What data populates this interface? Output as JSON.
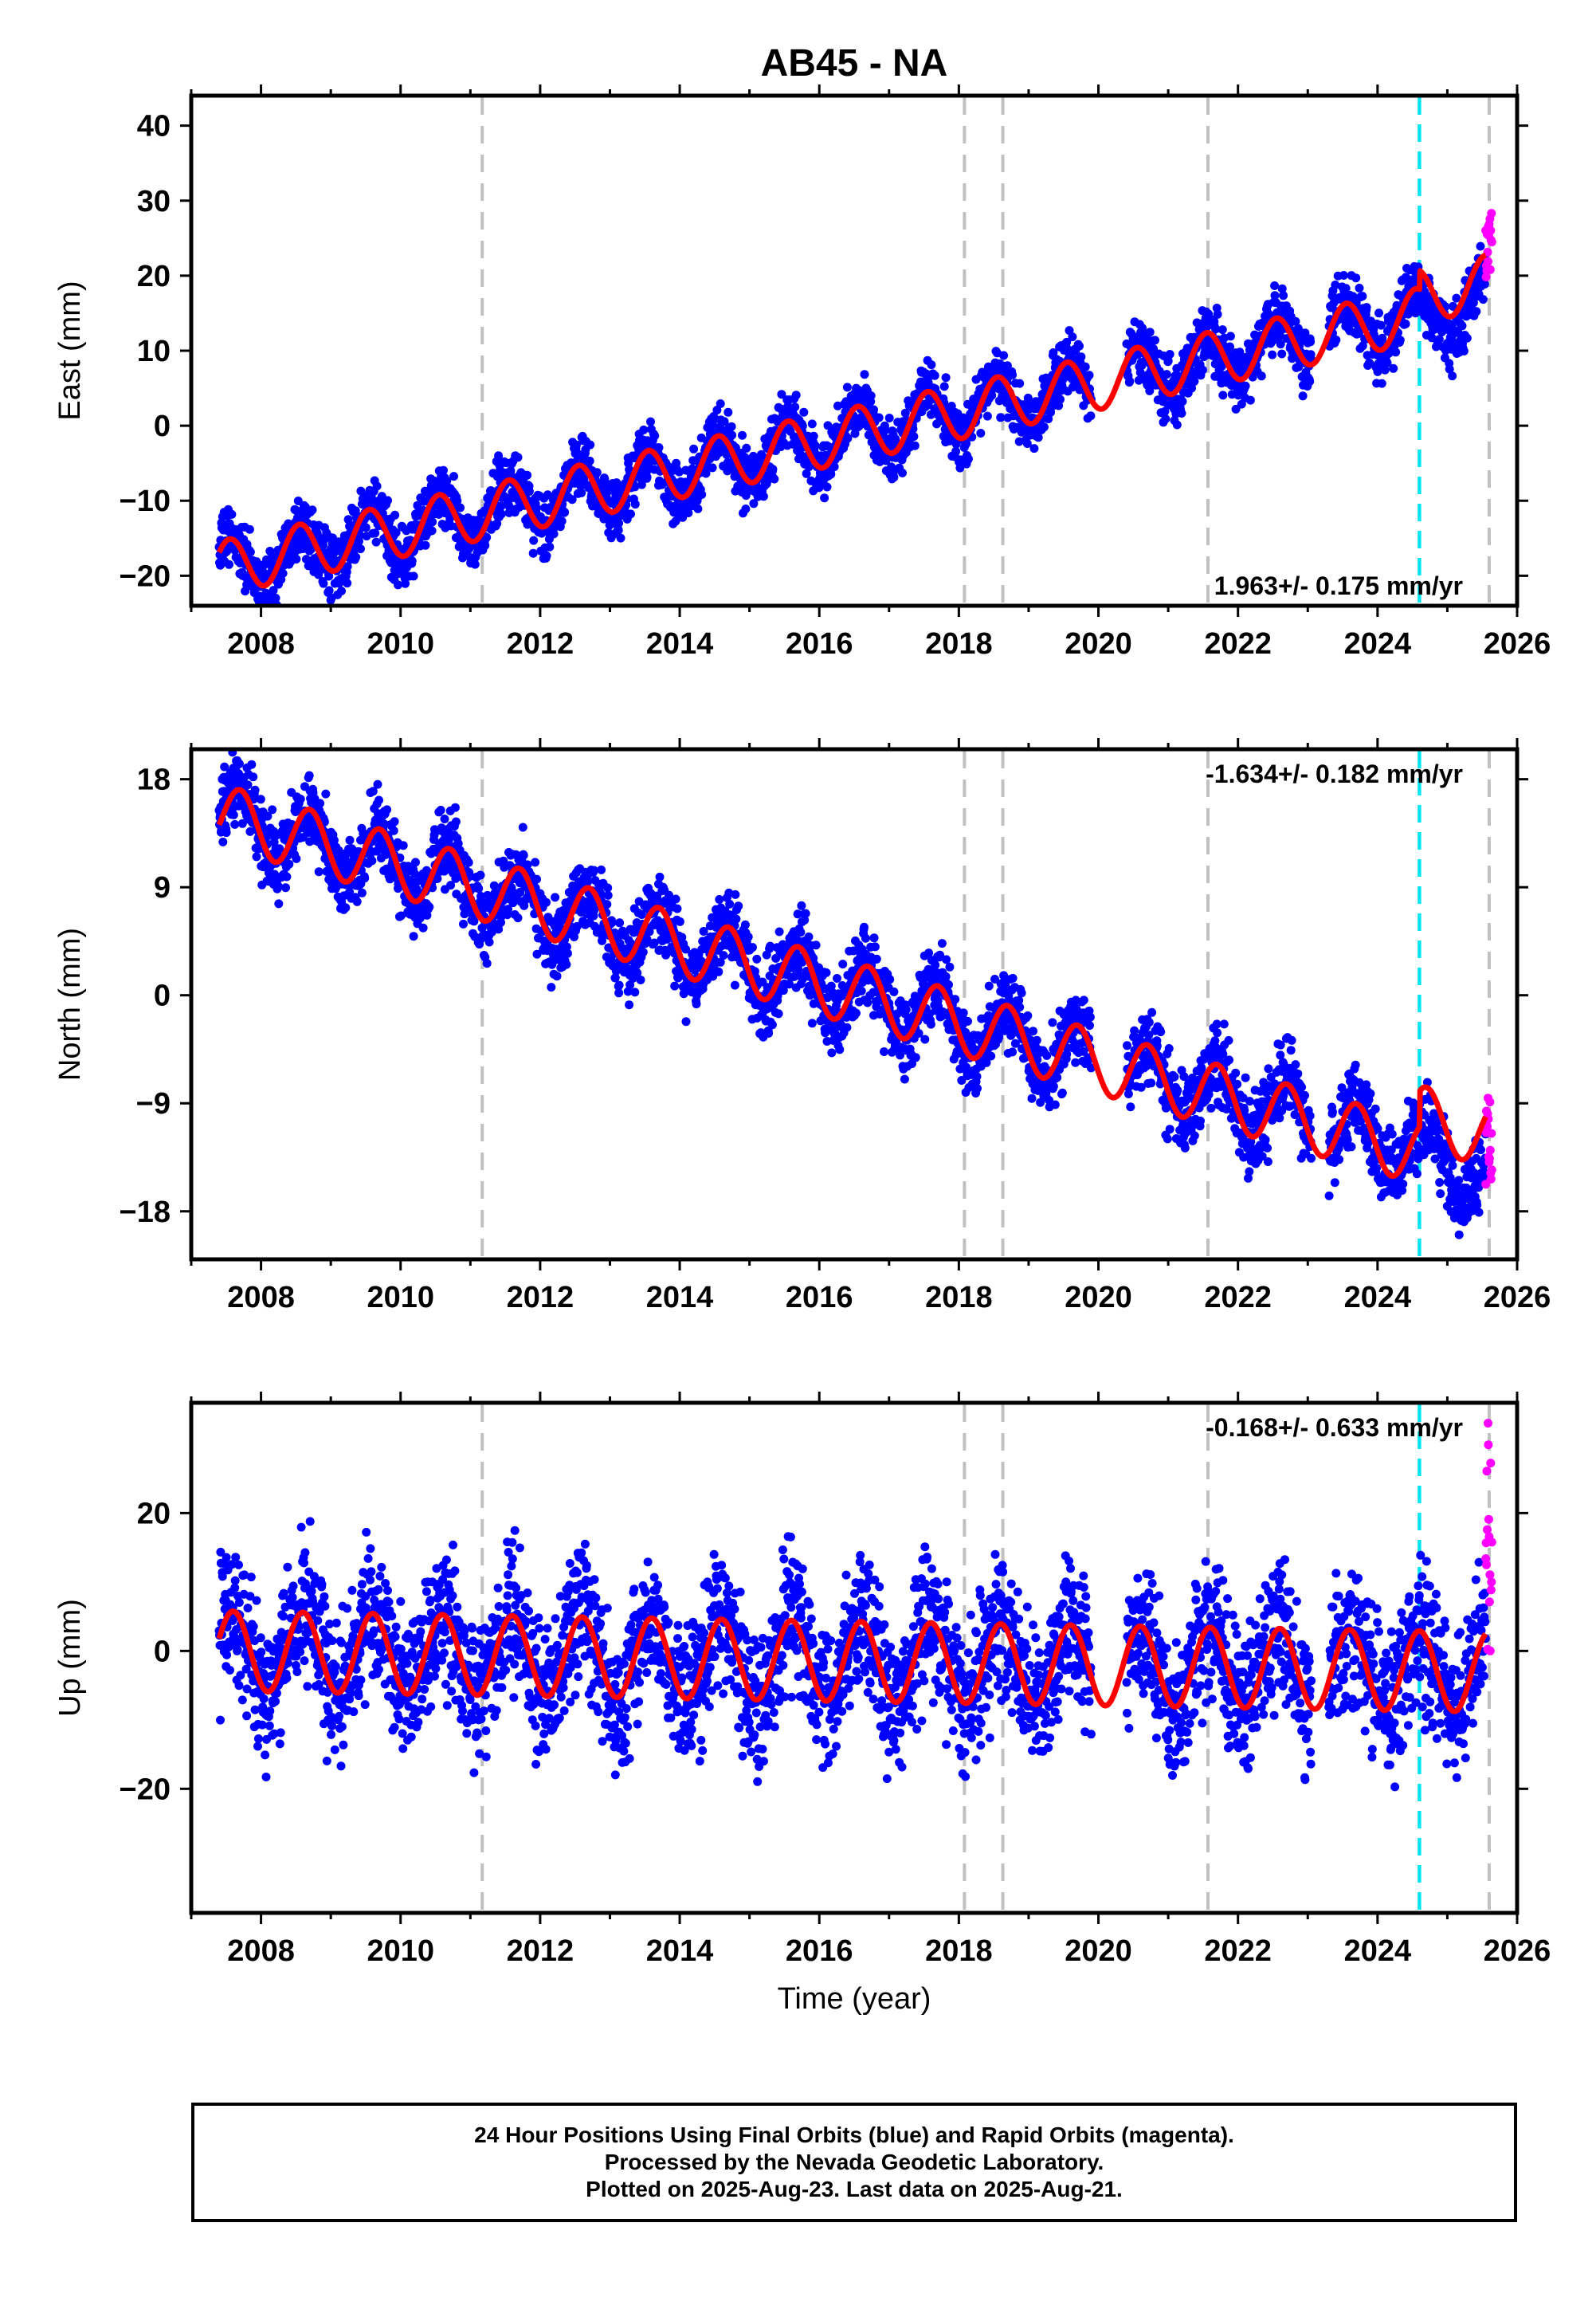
{
  "title": "AB45 - NA",
  "x_axis_label": "Time (year)",
  "x_ticks": [
    2008,
    2010,
    2012,
    2014,
    2016,
    2018,
    2020,
    2022,
    2024,
    2026
  ],
  "event_lines": {
    "gray": [
      2011.17,
      2018.08,
      2018.63,
      2021.57,
      2025.6
    ],
    "cyan": [
      2024.6
    ],
    "gray_color": "#c0c0c0",
    "cyan_color": "#00e5ee"
  },
  "colors": {
    "final_orbits": "#0000ff",
    "rapid_orbits": "#ff00ff",
    "model": "#ff0000"
  },
  "chart_data": [
    {
      "type": "scatter",
      "component": "east",
      "ylabel": "East (mm)",
      "xlim": [
        2007.0,
        2026.0
      ],
      "ylim": [
        -24,
        44
      ],
      "y_ticks": [
        -20,
        -10,
        0,
        10,
        20,
        30,
        40
      ],
      "rate_label": "1.963+/- 0.175 mm/yr",
      "rate_position": "bottom-right",
      "series": [
        {
          "name": "Final Orbits (blue)",
          "color": "#0000ff",
          "x_range": [
            2007.4,
            2025.55
          ],
          "trend": {
            "t0": 2007.4,
            "y0": -19.0,
            "slope": 1.963
          },
          "seasonal": {
            "amplitude": 3.6,
            "phase": 0.3
          },
          "scatter_sd": 2.0
        },
        {
          "name": "Rapid Orbits (magenta)",
          "color": "#ff00ff",
          "x_range": [
            2025.55,
            2025.64
          ],
          "y_range": [
            19.5,
            29
          ]
        }
      ],
      "model": {
        "color": "#ff0000",
        "trend": {
          "t0": 2007.4,
          "y0": -19.0,
          "slope": 1.963
        },
        "seasonal": {
          "amplitude": 3.6,
          "phase": 0.3
        },
        "offsets": [
          {
            "x": 2024.6,
            "dy": 2.5
          }
        ]
      }
    },
    {
      "type": "scatter",
      "component": "north",
      "ylabel": "North (mm)",
      "xlim": [
        2007.0,
        2026.0
      ],
      "ylim": [
        -22,
        20.5
      ],
      "y_ticks": [
        -18,
        -9,
        0,
        9,
        18
      ],
      "rate_label": "-1.634+/- 0.182 mm/yr",
      "rate_position": "top-right",
      "series": [
        {
          "name": "Final Orbits (blue)",
          "color": "#0000ff",
          "x_range": [
            2007.4,
            2025.55
          ],
          "trend": {
            "t0": 2007.4,
            "y0": 15.0,
            "slope": -1.634
          },
          "seasonal": {
            "amplitude": 2.6,
            "phase": 0.45
          },
          "scatter_sd": 1.6
        },
        {
          "name": "Rapid Orbits (magenta)",
          "color": "#ff00ff",
          "x_range": [
            2025.55,
            2025.64
          ],
          "y_range": [
            -16,
            -8.5
          ]
        }
      ],
      "model": {
        "color": "#ff0000",
        "trend": {
          "t0": 2007.4,
          "y0": 15.0,
          "slope": -1.634
        },
        "seasonal": {
          "amplitude": 2.6,
          "phase": 0.45
        },
        "offsets": [
          {
            "x": 2024.6,
            "dy": 3.0
          }
        ]
      }
    },
    {
      "type": "scatter",
      "component": "up",
      "ylabel": "Up (mm)",
      "xlim": [
        2007.0,
        2026.0
      ],
      "ylim": [
        -38,
        36
      ],
      "y_ticks": [
        -20,
        0,
        20
      ],
      "rate_label": "-0.168+/- 0.633 mm/yr",
      "rate_position": "top-right",
      "series": [
        {
          "name": "Final Orbits (blue)",
          "color": "#0000ff",
          "x_range": [
            2007.4,
            2025.55
          ],
          "trend": {
            "t0": 2007.4,
            "y0": 0.0,
            "slope": -0.168
          },
          "seasonal": {
            "amplitude": 5.8,
            "phase": 0.35
          },
          "scatter_sd": 5.0
        },
        {
          "name": "Rapid Orbits (magenta)",
          "color": "#ff00ff",
          "x_range": [
            2025.55,
            2025.64
          ],
          "y_range": [
            0,
            35
          ]
        }
      ],
      "model": {
        "color": "#ff0000",
        "trend": {
          "t0": 2007.4,
          "y0": 0.0,
          "slope": -0.168
        },
        "seasonal": {
          "amplitude": 5.8,
          "phase": 0.35
        },
        "offsets": []
      }
    }
  ],
  "footer": {
    "line1": "24 Hour Positions Using Final Orbits (blue) and Rapid Orbits (magenta).",
    "line2": "Processed by the Nevada Geodetic Laboratory.",
    "line3": "Plotted on 2025-Aug-23. Last data on 2025-Aug-21."
  }
}
